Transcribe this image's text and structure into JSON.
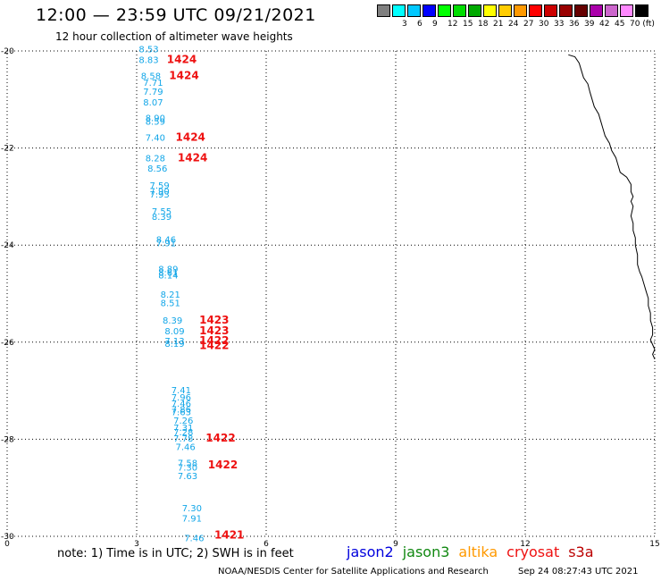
{
  "header": {
    "title": "12:00 — 23:59 UTC 09/21/2021",
    "subtitle": "12 hour collection of altimeter wave heights"
  },
  "legend": {
    "items": [
      {
        "label": "",
        "color": "#808080"
      },
      {
        "label": "3",
        "color": "#00ffff"
      },
      {
        "label": "6",
        "color": "#00c8ff"
      },
      {
        "label": "9",
        "color": "#0000ff"
      },
      {
        "label": "12",
        "color": "#00ff00"
      },
      {
        "label": "15",
        "color": "#00dd00"
      },
      {
        "label": "18",
        "color": "#00aa00"
      },
      {
        "label": "21",
        "color": "#ffff00"
      },
      {
        "label": "24",
        "color": "#ffcc00"
      },
      {
        "label": "27",
        "color": "#ff9900"
      },
      {
        "label": "30",
        "color": "#ff0000"
      },
      {
        "label": "33",
        "color": "#cc0000"
      },
      {
        "label": "36",
        "color": "#990000"
      },
      {
        "label": "39",
        "color": "#660000"
      },
      {
        "label": "42",
        "color": "#aa00aa"
      },
      {
        "label": "45",
        "color": "#cc66cc"
      },
      {
        "label": "70 (ft)",
        "color": "#ff88ff"
      },
      {
        "label": "",
        "color": "#000000"
      }
    ]
  },
  "map": {
    "x_ticks": [
      "0",
      "3",
      "6",
      "9",
      "12",
      "15"
    ],
    "y_ticks": [
      "-20",
      "-22",
      "-24",
      "-26",
      "-28",
      "-30"
    ],
    "swh_readings": [
      {
        "lon": 3.05,
        "lat": -20.03,
        "value": "8.53"
      },
      {
        "lon": 3.05,
        "lat": -20.25,
        "value": "8.83"
      },
      {
        "lon": 3.1,
        "lat": -20.58,
        "value": "8.58"
      },
      {
        "lon": 3.15,
        "lat": -20.72,
        "value": "7.71"
      },
      {
        "lon": 3.15,
        "lat": -20.9,
        "value": "7.79"
      },
      {
        "lon": 3.15,
        "lat": -21.12,
        "value": "8.07"
      },
      {
        "lon": 3.2,
        "lat": -21.45,
        "value": "8.90"
      },
      {
        "lon": 3.2,
        "lat": -21.52,
        "value": "8.59"
      },
      {
        "lon": 3.2,
        "lat": -21.85,
        "value": "7.40"
      },
      {
        "lon": 3.2,
        "lat": -22.27,
        "value": "8.28"
      },
      {
        "lon": 3.25,
        "lat": -22.49,
        "value": "8.56"
      },
      {
        "lon": 3.3,
        "lat": -22.84,
        "value": "7.59"
      },
      {
        "lon": 3.3,
        "lat": -22.96,
        "value": "7.90"
      },
      {
        "lon": 3.3,
        "lat": -23.02,
        "value": "7.93"
      },
      {
        "lon": 3.35,
        "lat": -23.37,
        "value": "7.55"
      },
      {
        "lon": 3.35,
        "lat": -23.48,
        "value": "8.39"
      },
      {
        "lon": 3.45,
        "lat": -23.95,
        "value": "8.46"
      },
      {
        "lon": 3.45,
        "lat": -24.02,
        "value": "7.91"
      },
      {
        "lon": 3.5,
        "lat": -24.56,
        "value": "8.89"
      },
      {
        "lon": 3.5,
        "lat": -24.63,
        "value": "8.61"
      },
      {
        "lon": 3.5,
        "lat": -24.69,
        "value": "8.14"
      },
      {
        "lon": 3.55,
        "lat": -25.08,
        "value": "8.21"
      },
      {
        "lon": 3.55,
        "lat": -25.26,
        "value": "8.51"
      },
      {
        "lon": 3.6,
        "lat": -25.62,
        "value": "8.39"
      },
      {
        "lon": 3.65,
        "lat": -25.84,
        "value": "8.09"
      },
      {
        "lon": 3.65,
        "lat": -26.04,
        "value": "7.13"
      },
      {
        "lon": 3.65,
        "lat": -26.1,
        "value": "8.19"
      },
      {
        "lon": 3.8,
        "lat": -27.05,
        "value": "7.41"
      },
      {
        "lon": 3.8,
        "lat": -27.2,
        "value": "7.96"
      },
      {
        "lon": 3.8,
        "lat": -27.33,
        "value": "7.46"
      },
      {
        "lon": 3.8,
        "lat": -27.45,
        "value": "7.86"
      },
      {
        "lon": 3.8,
        "lat": -27.5,
        "value": "7.63"
      },
      {
        "lon": 3.85,
        "lat": -27.68,
        "value": "7.26"
      },
      {
        "lon": 3.85,
        "lat": -27.83,
        "value": "7.31"
      },
      {
        "lon": 3.85,
        "lat": -27.92,
        "value": "7.28"
      },
      {
        "lon": 3.85,
        "lat": -28.05,
        "value": "7.78"
      },
      {
        "lon": 3.9,
        "lat": -28.22,
        "value": "7.46"
      },
      {
        "lon": 3.95,
        "lat": -28.55,
        "value": "7.58"
      },
      {
        "lon": 3.95,
        "lat": -28.65,
        "value": "7.30"
      },
      {
        "lon": 3.95,
        "lat": -28.82,
        "value": "7.63"
      },
      {
        "lon": 4.05,
        "lat": -29.48,
        "value": "7.30"
      },
      {
        "lon": 4.05,
        "lat": -29.7,
        "value": "7.91"
      },
      {
        "lon": 4.1,
        "lat": -30.1,
        "value": "7.46"
      }
    ],
    "pass_times": [
      {
        "lon": 3.7,
        "lat": -20.25,
        "label": "1424"
      },
      {
        "lon": 3.75,
        "lat": -20.58,
        "label": "1424"
      },
      {
        "lon": 3.9,
        "lat": -21.85,
        "label": "1424"
      },
      {
        "lon": 3.95,
        "lat": -22.27,
        "label": "1424"
      },
      {
        "lon": 4.45,
        "lat": -25.62,
        "label": "1423"
      },
      {
        "lon": 4.45,
        "lat": -25.84,
        "label": "1423"
      },
      {
        "lon": 4.45,
        "lat": -26.04,
        "label": "1422"
      },
      {
        "lon": 4.45,
        "lat": -26.14,
        "label": "1422"
      },
      {
        "lon": 4.6,
        "lat": -28.05,
        "label": "1422"
      },
      {
        "lon": 4.65,
        "lat": -28.6,
        "label": "1422"
      },
      {
        "lon": 4.8,
        "lat": -30.05,
        "label": "1421"
      }
    ],
    "coastline": [
      [
        13.0,
        -20.08
      ],
      [
        13.15,
        -20.12
      ],
      [
        13.25,
        -20.25
      ],
      [
        13.3,
        -20.4
      ],
      [
        13.35,
        -20.55
      ],
      [
        13.45,
        -20.68
      ],
      [
        13.5,
        -20.85
      ],
      [
        13.55,
        -21.0
      ],
      [
        13.6,
        -21.15
      ],
      [
        13.7,
        -21.3
      ],
      [
        13.75,
        -21.45
      ],
      [
        13.8,
        -21.6
      ],
      [
        13.85,
        -21.75
      ],
      [
        13.95,
        -21.9
      ],
      [
        14.0,
        -22.05
      ],
      [
        14.1,
        -22.2
      ],
      [
        14.15,
        -22.35
      ],
      [
        14.2,
        -22.5
      ],
      [
        14.35,
        -22.6
      ],
      [
        14.45,
        -22.75
      ],
      [
        14.45,
        -22.9
      ],
      [
        14.5,
        -23.0
      ],
      [
        14.45,
        -23.1
      ],
      [
        14.5,
        -23.2
      ],
      [
        14.45,
        -23.4
      ],
      [
        14.5,
        -23.55
      ],
      [
        14.5,
        -23.7
      ],
      [
        14.55,
        -23.85
      ],
      [
        14.55,
        -24.0
      ],
      [
        14.6,
        -24.2
      ],
      [
        14.6,
        -24.4
      ],
      [
        14.65,
        -24.55
      ],
      [
        14.7,
        -24.65
      ],
      [
        14.75,
        -24.8
      ],
      [
        14.8,
        -24.95
      ],
      [
        14.85,
        -25.1
      ],
      [
        14.85,
        -25.25
      ],
      [
        14.9,
        -25.4
      ],
      [
        14.9,
        -25.55
      ],
      [
        14.95,
        -25.7
      ],
      [
        14.95,
        -25.85
      ],
      [
        14.9,
        -25.95
      ],
      [
        14.95,
        -26.05
      ],
      [
        15.0,
        -26.15
      ],
      [
        14.95,
        -26.25
      ],
      [
        15.0,
        -26.35
      ]
    ]
  },
  "footer": {
    "note": "note: 1) Time is in UTC; 2) SWH is in feet",
    "satellites": [
      {
        "name": "jason2",
        "color": "#0000dd"
      },
      {
        "name": "jason3",
        "color": "#118811"
      },
      {
        "name": "altika",
        "color": "#ff9900"
      },
      {
        "name": "cryosat",
        "color": "#ee1111"
      },
      {
        "name": "s3a",
        "color": "#bb0000"
      }
    ],
    "credit": "NOAA/NESDIS Center for Satellite Applications and Research",
    "timestamp": "Sep 24 08:27:43 UTC 2021"
  }
}
